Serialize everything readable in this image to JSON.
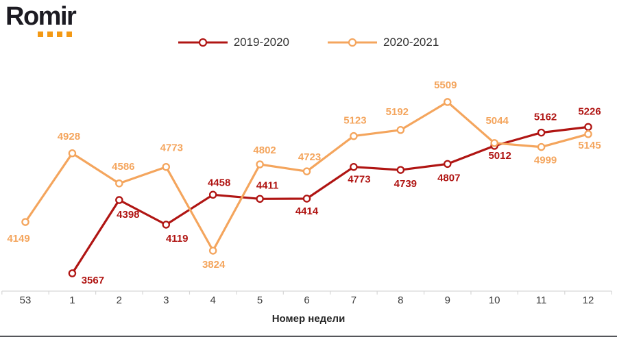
{
  "logo": {
    "text": "Romir",
    "text_color": "#1c1b22",
    "dot_color": "#f39915",
    "dot_count": 4
  },
  "colors": {
    "series_2019_2020": "#b01513",
    "series_2020_2021": "#f4a55d",
    "axis_line": "#d6d6d6",
    "tick_text": "#3b3b3b",
    "axis_title_text": "#262626"
  },
  "chart_data": {
    "type": "line",
    "title": "",
    "xlabel": "Номер недели",
    "ylabel": "",
    "grid": false,
    "legend_position": "top",
    "ylim": [
      3350,
      5850
    ],
    "categories": [
      "53",
      "1",
      "2",
      "3",
      "4",
      "5",
      "6",
      "7",
      "8",
      "9",
      "10",
      "11",
      "12"
    ],
    "series": [
      {
        "name": "2019-2020",
        "color": "#b01513",
        "values": [
          null,
          3567,
          4398,
          4119,
          4458,
          4411,
          4414,
          4773,
          4739,
          4807,
          5012,
          5162,
          5226
        ],
        "label_offsets": [
          [
            0,
            0
          ],
          [
            30,
            15
          ],
          [
            13,
            26
          ],
          [
            16,
            25
          ],
          [
            9,
            -13
          ],
          [
            11,
            -15
          ],
          [
            0,
            23
          ],
          [
            8,
            23
          ],
          [
            7,
            25
          ],
          [
            2,
            25
          ],
          [
            8,
            19
          ],
          [
            6,
            -18
          ],
          [
            2,
            -18
          ]
        ]
      },
      {
        "name": "2020-2021",
        "color": "#f4a55d",
        "values": [
          4149,
          4928,
          4586,
          4773,
          3824,
          4802,
          4723,
          5123,
          5192,
          5509,
          5044,
          4999,
          5145
        ],
        "label_offsets": [
          [
            -10,
            29
          ],
          [
            -5,
            -20
          ],
          [
            6,
            -20
          ],
          [
            8,
            -23
          ],
          [
            1,
            25
          ],
          [
            7,
            -16
          ],
          [
            4,
            -16
          ],
          [
            2,
            -18
          ],
          [
            -5,
            -22
          ],
          [
            -3,
            -20
          ],
          [
            4,
            -28
          ],
          [
            6,
            24
          ],
          [
            2,
            21
          ]
        ]
      }
    ]
  }
}
